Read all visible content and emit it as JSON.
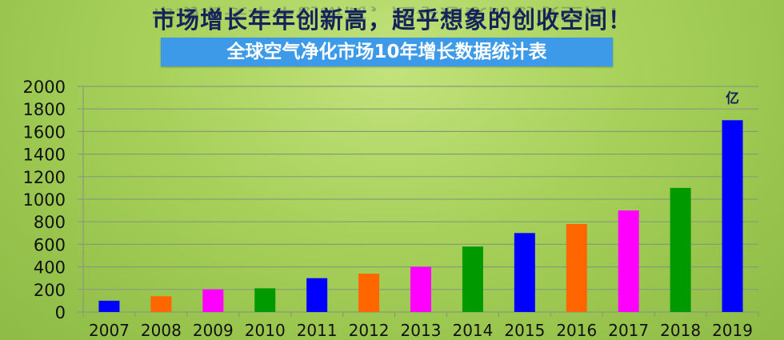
{
  "headline": "市场增长年年创新高，超乎想象的创收空间！",
  "chart_data": {
    "type": "bar",
    "title": "全球空气净化市场10年增长数据统计表",
    "unit_label": "亿",
    "categories": [
      "2007",
      "2008",
      "2009",
      "2010",
      "2011",
      "2012",
      "2013",
      "2014",
      "2015",
      "2016",
      "2017",
      "2018",
      "2019"
    ],
    "values": [
      100,
      140,
      200,
      210,
      300,
      340,
      400,
      580,
      700,
      780,
      900,
      1100,
      1700
    ],
    "colors": [
      "#0000ff",
      "#ff6600",
      "#ff00ff",
      "#009900",
      "#0000ff",
      "#ff6600",
      "#ff00ff",
      "#009900",
      "#0000ff",
      "#ff6600",
      "#ff00ff",
      "#009900",
      "#0000ff"
    ],
    "ylim": [
      0,
      2000
    ],
    "yticks": [
      0,
      200,
      400,
      600,
      800,
      1000,
      1200,
      1400,
      1600,
      1800,
      2000
    ],
    "grid": true,
    "legend": "none"
  }
}
